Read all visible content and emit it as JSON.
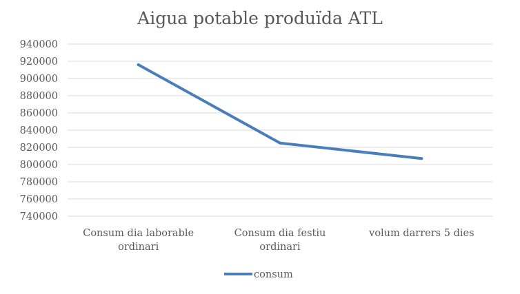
{
  "chart_data": {
    "type": "line",
    "title": "Aigua potable produïda ATL",
    "categories": [
      [
        "Consum dia laborable",
        "ordinari"
      ],
      [
        "Consum dia festiu",
        "ordinari"
      ],
      [
        "volum darrers 5 dies"
      ]
    ],
    "series": [
      {
        "name": "consum",
        "values": [
          916000,
          825000,
          807000
        ],
        "color": "#4a7ebb"
      }
    ],
    "ylim": [
      740000,
      940000
    ],
    "yticks": [
      "740000",
      "760000",
      "780000",
      "800000",
      "820000",
      "840000",
      "860000",
      "880000",
      "900000",
      "920000",
      "940000"
    ],
    "grid": true,
    "legend_position": "bottom"
  }
}
